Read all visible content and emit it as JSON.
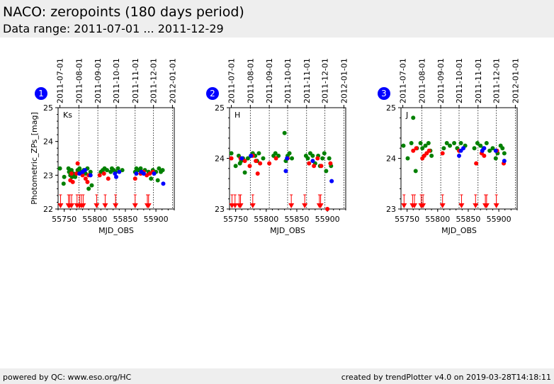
{
  "header": {
    "title": "NACO: zeropoints (180 days period)",
    "subtitle": "Data range: 2011-07-01 ... 2011-12-29"
  },
  "footer": {
    "left": "powered by QC: www.eso.org/HC",
    "right": "created by trendPlotter v4.0 on 2019-03-28T14:18:11"
  },
  "colors": {
    "green": "#008000",
    "red": "#ff0000",
    "blue": "#0000ff",
    "badge": "#0000ff"
  },
  "chart_data": [
    {
      "type": "scatter",
      "panel_number": "1",
      "band_label": "Ks",
      "xlabel": "MJD_OBS",
      "ylabel": "Photometric_ZPs_[mag]",
      "xlim": [
        55740,
        55930
      ],
      "ylim": [
        22,
        25
      ],
      "yticks": [
        22,
        23,
        24,
        25
      ],
      "xticks": [
        55750,
        55800,
        55850,
        55900
      ],
      "date_ticks": [
        {
          "label": "2011-07-01",
          "mjd": 55743
        },
        {
          "label": "2011-08-01",
          "mjd": 55774
        },
        {
          "label": "2011-09-01",
          "mjd": 55805
        },
        {
          "label": "2011-10-01",
          "mjd": 55835
        },
        {
          "label": "2011-11-01",
          "mjd": 55866
        },
        {
          "label": "2011-12-01",
          "mjd": 55896
        },
        {
          "label": "2012-01-01",
          "mjd": 55927
        }
      ],
      "series": [
        {
          "name": "green",
          "color": "green",
          "points": [
            [
              55743,
              23.2
            ],
            [
              55749,
              22.75
            ],
            [
              55750,
              22.95
            ],
            [
              55757,
              23.2
            ],
            [
              55758,
              23.1
            ],
            [
              55760,
              23.0
            ],
            [
              55762,
              23.15
            ],
            [
              55763,
              22.95
            ],
            [
              55765,
              23.05
            ],
            [
              55768,
              22.95
            ],
            [
              55772,
              23.15
            ],
            [
              55775,
              23.2
            ],
            [
              55778,
              23.1
            ],
            [
              55782,
              23.15
            ],
            [
              55785,
              23.05
            ],
            [
              55788,
              23.2
            ],
            [
              55790,
              22.6
            ],
            [
              55793,
              23.1
            ],
            [
              55795,
              22.7
            ],
            [
              55810,
              23.1
            ],
            [
              55813,
              23.15
            ],
            [
              55816,
              23.2
            ],
            [
              55820,
              23.15
            ],
            [
              55826,
              23.1
            ],
            [
              55828,
              23.2
            ],
            [
              55831,
              23.15
            ],
            [
              55834,
              23.1
            ],
            [
              55838,
              23.2
            ],
            [
              55845,
              23.15
            ],
            [
              55866,
              23.1
            ],
            [
              55868,
              23.2
            ],
            [
              55871,
              23.15
            ],
            [
              55875,
              23.2
            ],
            [
              55878,
              23.1
            ],
            [
              55882,
              23.15
            ],
            [
              55888,
              23.1
            ],
            [
              55892,
              22.9
            ],
            [
              55895,
              23.15
            ],
            [
              55900,
              23.1
            ],
            [
              55903,
              22.85
            ],
            [
              55905,
              23.2
            ],
            [
              55908,
              23.1
            ],
            [
              55911,
              23.15
            ]
          ]
        },
        {
          "name": "red",
          "color": "red",
          "points": [
            [
              55760,
              22.85
            ],
            [
              55762,
              23.05
            ],
            [
              55764,
              22.8
            ],
            [
              55770,
              23.05
            ],
            [
              55772,
              23.35
            ],
            [
              55780,
              23.0
            ],
            [
              55785,
              22.9
            ],
            [
              55788,
              22.8
            ],
            [
              55790,
              23.0
            ],
            [
              55808,
              23.0
            ],
            [
              55815,
              23.05
            ],
            [
              55822,
              22.9
            ],
            [
              55866,
              22.9
            ],
            [
              55875,
              23.05
            ],
            [
              55880,
              23.1
            ],
            [
              55885,
              23.0
            ],
            [
              55890,
              23.05
            ],
            [
              55895,
              23.1
            ]
          ]
        },
        {
          "name": "blue",
          "color": "blue",
          "points": [
            [
              55775,
              23.05
            ],
            [
              55780,
              23.1
            ],
            [
              55784,
              23.15
            ],
            [
              55793,
              23.0
            ],
            [
              55833,
              23.05
            ],
            [
              55835,
              22.95
            ],
            [
              55840,
              23.1
            ],
            [
              55868,
              23.05
            ],
            [
              55876,
              23.1
            ],
            [
              55880,
              23.05
            ],
            [
              55897,
              23.05
            ],
            [
              55912,
              22.75
            ]
          ]
        }
      ],
      "limit_markers_mjd": [
        55744,
        55757,
        55759,
        55762,
        55771,
        55775,
        55778,
        55781,
        55803,
        55817,
        55834,
        55866,
        55886,
        55888
      ]
    },
    {
      "type": "scatter",
      "panel_number": "2",
      "band_label": "H",
      "xlabel": "MJD_OBS",
      "ylabel": "",
      "xlim": [
        55740,
        55930
      ],
      "ylim": [
        23,
        25
      ],
      "yticks": [
        23,
        24,
        25
      ],
      "xticks": [
        55750,
        55800,
        55850,
        55900
      ],
      "date_ticks": [
        {
          "label": "2011-07-01",
          "mjd": 55743
        },
        {
          "label": "2011-08-01",
          "mjd": 55774
        },
        {
          "label": "2011-09-01",
          "mjd": 55805
        },
        {
          "label": "2011-10-01",
          "mjd": 55835
        },
        {
          "label": "2011-11-01",
          "mjd": 55866
        },
        {
          "label": "2011-12-01",
          "mjd": 55896
        },
        {
          "label": "2012-01-01",
          "mjd": 55927
        }
      ],
      "series": [
        {
          "name": "green",
          "color": "green",
          "points": [
            [
              55743,
              24.1
            ],
            [
              55750,
              23.85
            ],
            [
              55755,
              24.05
            ],
            [
              55757,
              23.9
            ],
            [
              55759,
              23.95
            ],
            [
              55762,
              24.0
            ],
            [
              55765,
              23.72
            ],
            [
              55770,
              24.0
            ],
            [
              55775,
              24.05
            ],
            [
              55778,
              24.1
            ],
            [
              55782,
              24.05
            ],
            [
              55785,
              23.95
            ],
            [
              55788,
              24.1
            ],
            [
              55795,
              24.0
            ],
            [
              55812,
              24.05
            ],
            [
              55815,
              24.1
            ],
            [
              55820,
              24.05
            ],
            [
              55830,
              24.5
            ],
            [
              55832,
              23.95
            ],
            [
              55835,
              24.05
            ],
            [
              55838,
              24.1
            ],
            [
              55842,
              24.0
            ],
            [
              55865,
              24.05
            ],
            [
              55868,
              24.0
            ],
            [
              55872,
              24.1
            ],
            [
              55876,
              24.05
            ],
            [
              55880,
              23.9
            ],
            [
              55885,
              24.05
            ],
            [
              55888,
              23.85
            ],
            [
              55892,
              24.0
            ],
            [
              55895,
              24.1
            ],
            [
              55898,
              23.75
            ],
            [
              55903,
              24.0
            ],
            [
              55906,
              23.85
            ]
          ]
        },
        {
          "name": "red",
          "color": "red",
          "points": [
            [
              55743,
              24.0
            ],
            [
              55758,
              24.0
            ],
            [
              55765,
              23.95
            ],
            [
              55773,
              23.85
            ],
            [
              55778,
              24.05
            ],
            [
              55783,
              23.95
            ],
            [
              55786,
              23.7
            ],
            [
              55790,
              23.9
            ],
            [
              55805,
              23.9
            ],
            [
              55816,
              24.0
            ],
            [
              55835,
              24.0
            ],
            [
              55870,
              23.9
            ],
            [
              55878,
              23.85
            ],
            [
              55884,
              24.0
            ],
            [
              55890,
              23.85
            ],
            [
              55900,
              23.0
            ],
            [
              55905,
              23.9
            ]
          ]
        },
        {
          "name": "blue",
          "color": "blue",
          "points": [
            [
              55760,
              24.0
            ],
            [
              55775,
              24.05
            ],
            [
              55832,
              23.75
            ],
            [
              55834,
              24.0
            ],
            [
              55876,
              23.95
            ],
            [
              55907,
              23.55
            ]
          ]
        }
      ],
      "limit_markers_mjd": [
        55744,
        55749,
        55756,
        55758,
        55778,
        55841,
        55863,
        55887,
        55889
      ]
    },
    {
      "type": "scatter",
      "panel_number": "3",
      "band_label": "J",
      "xlabel": "MJD_OBS",
      "ylabel": "",
      "xlim": [
        55740,
        55930
      ],
      "ylim": [
        23,
        25
      ],
      "yticks": [
        23,
        24,
        25
      ],
      "xticks": [
        55750,
        55800,
        55850,
        55900
      ],
      "date_ticks": [
        {
          "label": "2011-07-01",
          "mjd": 55743
        },
        {
          "label": "2011-08-01",
          "mjd": 55774
        },
        {
          "label": "2011-09-01",
          "mjd": 55805
        },
        {
          "label": "2011-10-01",
          "mjd": 55835
        },
        {
          "label": "2011-11-01",
          "mjd": 55866
        },
        {
          "label": "2011-12-01",
          "mjd": 55896
        },
        {
          "label": "2012-01-01",
          "mjd": 55927
        }
      ],
      "series": [
        {
          "name": "green",
          "color": "green",
          "points": [
            [
              55744,
              24.25
            ],
            [
              55751,
              24.0
            ],
            [
              55757,
              24.3
            ],
            [
              55760,
              24.8
            ],
            [
              55764,
              23.75
            ],
            [
              55766,
              24.2
            ],
            [
              55772,
              24.3
            ],
            [
              55775,
              24.2
            ],
            [
              55780,
              24.25
            ],
            [
              55785,
              24.3
            ],
            [
              55788,
              24.15
            ],
            [
              55790,
              24.05
            ],
            [
              55810,
              24.2
            ],
            [
              55815,
              24.3
            ],
            [
              55820,
              24.25
            ],
            [
              55827,
              24.3
            ],
            [
              55832,
              24.2
            ],
            [
              55838,
              24.3
            ],
            [
              55845,
              24.25
            ],
            [
              55860,
              24.2
            ],
            [
              55865,
              24.3
            ],
            [
              55870,
              24.25
            ],
            [
              55875,
              24.2
            ],
            [
              55880,
              24.3
            ],
            [
              55885,
              24.15
            ],
            [
              55890,
              24.2
            ],
            [
              55895,
              24.0
            ],
            [
              55898,
              24.1
            ],
            [
              55903,
              24.25
            ],
            [
              55906,
              24.2
            ],
            [
              55909,
              24.1
            ]
          ]
        },
        {
          "name": "red",
          "color": "red",
          "points": [
            [
              55760,
              24.15
            ],
            [
              55765,
              24.2
            ],
            [
              55775,
              24.0
            ],
            [
              55778,
              24.05
            ],
            [
              55782,
              24.1
            ],
            [
              55786,
              24.15
            ],
            [
              55808,
              24.1
            ],
            [
              55835,
              24.15
            ],
            [
              55863,
              23.9
            ],
            [
              55872,
              24.1
            ],
            [
              55876,
              24.05
            ],
            [
              55897,
              24.15
            ],
            [
              55908,
              23.9
            ]
          ]
        },
        {
          "name": "blue",
          "color": "blue",
          "points": [
            [
              55835,
              24.05
            ],
            [
              55838,
              24.15
            ],
            [
              55842,
              24.2
            ],
            [
              55873,
              24.15
            ],
            [
              55876,
              24.2
            ],
            [
              55895,
              24.15
            ],
            [
              55909,
              23.95
            ]
          ]
        }
      ],
      "limit_markers_mjd": [
        55745,
        55759,
        55762,
        55773,
        55776,
        55808,
        55839,
        55862,
        55878,
        55880,
        55896
      ]
    }
  ]
}
